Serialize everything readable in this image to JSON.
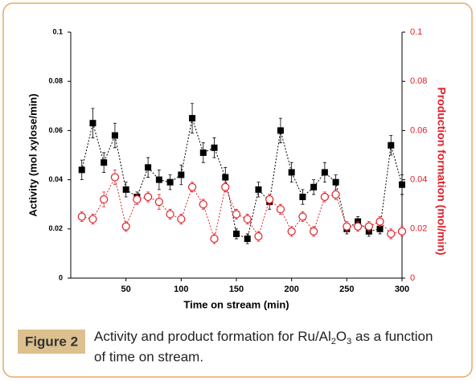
{
  "chart_data": {
    "type": "line",
    "x_label": "Time on stream (min)",
    "y_label": "Activity (mol xylose/min)",
    "y2_label": "Production formation (mol/min)",
    "x": [
      10,
      20,
      30,
      40,
      50,
      60,
      70,
      80,
      90,
      100,
      110,
      120,
      130,
      140,
      150,
      160,
      170,
      180,
      190,
      200,
      210,
      220,
      230,
      240,
      250,
      260,
      270,
      280,
      290,
      300
    ],
    "xlim": [
      0,
      300
    ],
    "xticks": [
      50,
      100,
      150,
      200,
      250,
      300
    ],
    "ylim": [
      0,
      0.1
    ],
    "yticks": [
      0,
      0.02,
      0.04,
      0.06,
      0.08,
      0.1
    ],
    "y2lim": [
      0,
      0.1
    ],
    "y2ticks": [
      0,
      0.02,
      0.04,
      0.06,
      0.08,
      0.1
    ],
    "series": [
      {
        "color": "#000000",
        "marker": "square",
        "values": [
          0.044,
          0.063,
          0.047,
          0.058,
          0.036,
          0.033,
          0.045,
          0.04,
          0.039,
          0.042,
          0.065,
          0.051,
          0.053,
          0.041,
          0.018,
          0.016,
          0.036,
          0.031,
          0.06,
          0.043,
          0.033,
          0.037,
          0.043,
          0.039,
          0.02,
          0.023,
          0.019,
          0.02,
          0.054,
          0.038
        ],
        "errors": [
          0.004,
          0.006,
          0.004,
          0.005,
          0.003,
          0.002,
          0.004,
          0.004,
          0.003,
          0.004,
          0.006,
          0.004,
          0.004,
          0.004,
          0.002,
          0.002,
          0.003,
          0.003,
          0.005,
          0.004,
          0.003,
          0.003,
          0.004,
          0.003,
          0.002,
          0.002,
          0.002,
          0.002,
          0.004,
          0.004
        ]
      },
      {
        "color": "#e0202a",
        "marker": "circle",
        "axis": "y2",
        "values": [
          0.025,
          0.024,
          0.032,
          0.041,
          0.021,
          0.032,
          0.033,
          0.031,
          0.026,
          0.024,
          0.037,
          0.03,
          0.016,
          0.037,
          0.026,
          0.024,
          0.017,
          0.032,
          0.028,
          0.019,
          0.025,
          0.019,
          0.033,
          0.034,
          0.021,
          0.021,
          0.021,
          0.023,
          0.018,
          0.019
        ],
        "errors": [
          0.002,
          0.002,
          0.003,
          0.003,
          0.002,
          0.002,
          0.002,
          0.003,
          0.002,
          0.002,
          0.002,
          0.002,
          0.002,
          0.002,
          0.002,
          0.002,
          0.002,
          0.002,
          0.002,
          0.002,
          0.002,
          0.002,
          0.002,
          0.002,
          0.002,
          0.002,
          0.002,
          0.002,
          0.002,
          0.002
        ]
      }
    ]
  },
  "caption": {
    "label": "Figure 2",
    "text": [
      "Activity and product formation for Ru/Al",
      "2",
      "O",
      "3",
      " as a function",
      "of time on stream."
    ]
  }
}
